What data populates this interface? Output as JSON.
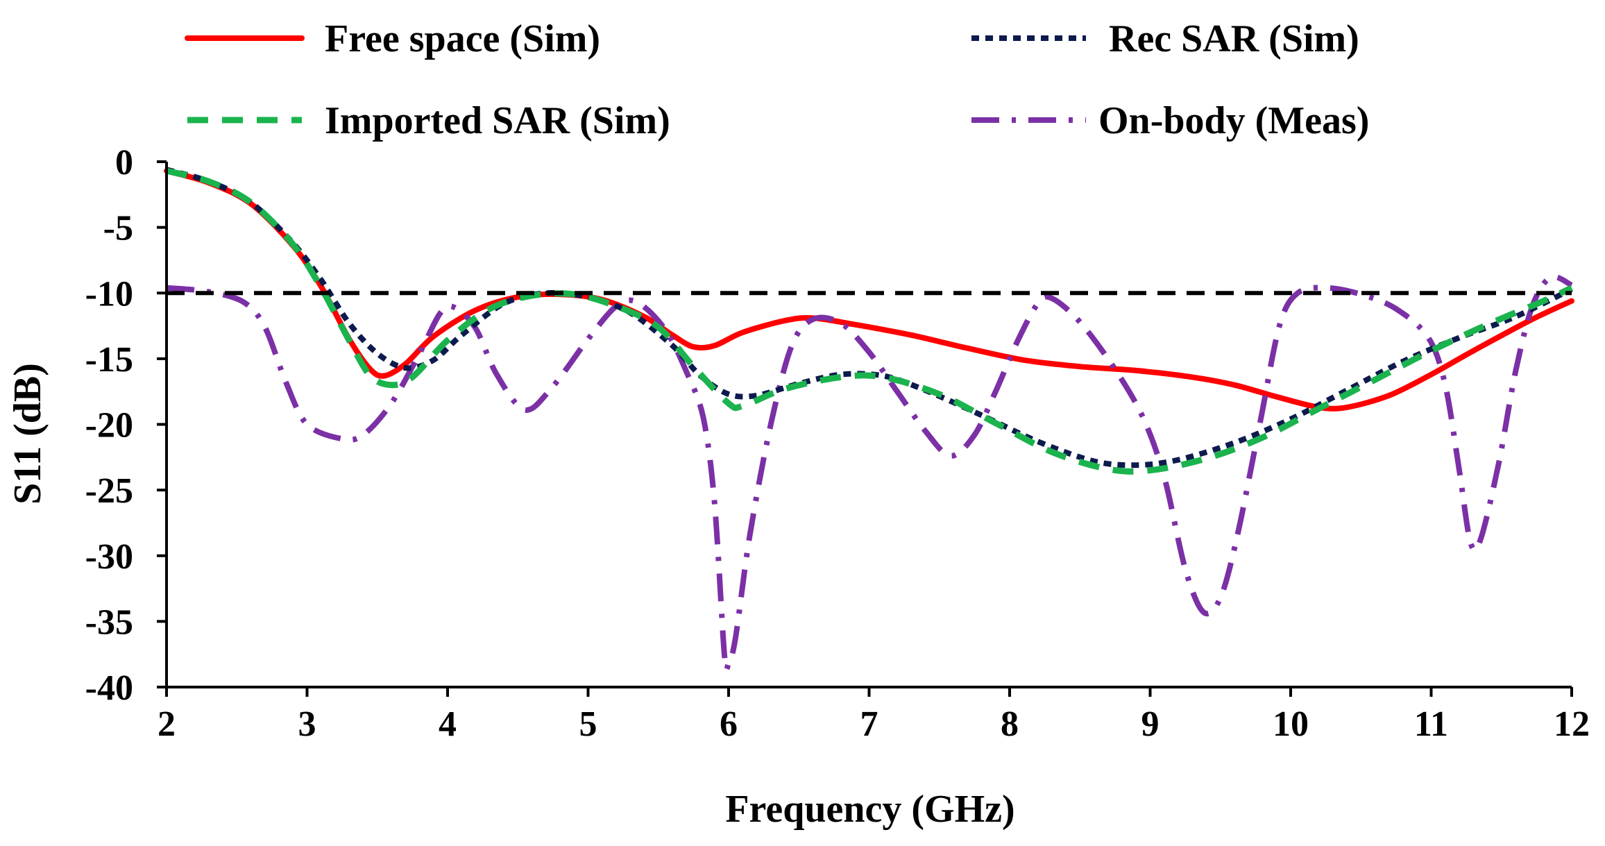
{
  "chart_data": {
    "type": "line",
    "title": "",
    "xlabel": "Frequency (GHz)",
    "ylabel": "S11  (dB)",
    "xlim": [
      2,
      12
    ],
    "ylim": [
      -40,
      0
    ],
    "x_ticks": [
      2,
      3,
      4,
      5,
      6,
      7,
      8,
      9,
      10,
      11,
      12
    ],
    "y_ticks": [
      0,
      -5,
      -10,
      -15,
      -20,
      -25,
      -30,
      -35,
      -40
    ],
    "x_tick_labels": [
      "2",
      "3",
      "4",
      "5",
      "6",
      "7",
      "8",
      "9",
      "10",
      "11",
      "12"
    ],
    "y_tick_labels": [
      "0",
      "-5",
      "-10",
      "-15",
      "-20",
      "-25",
      "-30",
      "-35",
      "-40"
    ],
    "grid": false,
    "legend_position": "top",
    "reference_line": {
      "y": -10,
      "color": "#000000",
      "style": "dashed"
    },
    "series": [
      {
        "name": "Free space (Sim)",
        "color": "#ff0000",
        "style": "solid",
        "points": [
          [
            2,
            -0.7
          ],
          [
            2.3,
            -1.6
          ],
          [
            2.6,
            -3.2
          ],
          [
            2.9,
            -6.4
          ],
          [
            3.1,
            -9.5
          ],
          [
            3.3,
            -13.5
          ],
          [
            3.45,
            -15.8
          ],
          [
            3.55,
            -16.3
          ],
          [
            3.7,
            -15.4
          ],
          [
            3.9,
            -13.3
          ],
          [
            4.2,
            -11.3
          ],
          [
            4.5,
            -10.3
          ],
          [
            4.8,
            -10.1
          ],
          [
            5.1,
            -10.5
          ],
          [
            5.4,
            -11.8
          ],
          [
            5.6,
            -13.2
          ],
          [
            5.75,
            -14.1
          ],
          [
            5.9,
            -14.0
          ],
          [
            6.1,
            -13.0
          ],
          [
            6.4,
            -12.1
          ],
          [
            6.6,
            -11.9
          ],
          [
            6.9,
            -12.4
          ],
          [
            7.3,
            -13.2
          ],
          [
            7.7,
            -14.2
          ],
          [
            8.1,
            -15.1
          ],
          [
            8.5,
            -15.6
          ],
          [
            8.9,
            -15.9
          ],
          [
            9.3,
            -16.4
          ],
          [
            9.6,
            -17.0
          ],
          [
            9.9,
            -17.9
          ],
          [
            10.2,
            -18.7
          ],
          [
            10.4,
            -18.7
          ],
          [
            10.7,
            -17.8
          ],
          [
            11.0,
            -16.2
          ],
          [
            11.3,
            -14.4
          ],
          [
            11.7,
            -12.1
          ],
          [
            12,
            -10.6
          ]
        ]
      },
      {
        "name": "Rec SAR (Sim)",
        "color": "#0d1a4d",
        "style": "dotted",
        "points": [
          [
            2,
            -0.6
          ],
          [
            2.3,
            -1.5
          ],
          [
            2.6,
            -3.1
          ],
          [
            2.9,
            -6.2
          ],
          [
            3.1,
            -9.0
          ],
          [
            3.3,
            -12.3
          ],
          [
            3.5,
            -14.6
          ],
          [
            3.7,
            -15.7
          ],
          [
            3.9,
            -15.1
          ],
          [
            4.1,
            -13.2
          ],
          [
            4.4,
            -10.8
          ],
          [
            4.7,
            -10.0
          ],
          [
            5.0,
            -10.3
          ],
          [
            5.3,
            -11.5
          ],
          [
            5.6,
            -14.0
          ],
          [
            5.8,
            -16.3
          ],
          [
            6.0,
            -17.7
          ],
          [
            6.2,
            -17.8
          ],
          [
            6.5,
            -16.9
          ],
          [
            6.8,
            -16.2
          ],
          [
            7.1,
            -16.3
          ],
          [
            7.4,
            -17.4
          ],
          [
            7.8,
            -19.3
          ],
          [
            8.2,
            -21.3
          ],
          [
            8.6,
            -22.8
          ],
          [
            8.9,
            -23.1
          ],
          [
            9.2,
            -22.7
          ],
          [
            9.6,
            -21.4
          ],
          [
            10.0,
            -19.6
          ],
          [
            10.4,
            -17.4
          ],
          [
            10.8,
            -15.2
          ],
          [
            11.2,
            -13.4
          ],
          [
            11.6,
            -11.8
          ],
          [
            12,
            -9.7
          ]
        ]
      },
      {
        "name": "Imported SAR (Sim)",
        "color": "#1ab34d",
        "style": "dashed",
        "points": [
          [
            2,
            -0.7
          ],
          [
            2.3,
            -1.5
          ],
          [
            2.6,
            -3.1
          ],
          [
            2.9,
            -6.3
          ],
          [
            3.1,
            -9.6
          ],
          [
            3.3,
            -13.6
          ],
          [
            3.45,
            -16.3
          ],
          [
            3.6,
            -17.0
          ],
          [
            3.75,
            -16.4
          ],
          [
            4.0,
            -13.6
          ],
          [
            4.3,
            -11.2
          ],
          [
            4.6,
            -10.2
          ],
          [
            4.9,
            -10.1
          ],
          [
            5.2,
            -11.0
          ],
          [
            5.5,
            -12.6
          ],
          [
            5.75,
            -15.6
          ],
          [
            6.0,
            -18.4
          ],
          [
            6.1,
            -18.6
          ],
          [
            6.4,
            -17.3
          ],
          [
            6.8,
            -16.4
          ],
          [
            7.1,
            -16.4
          ],
          [
            7.5,
            -17.7
          ],
          [
            7.9,
            -19.9
          ],
          [
            8.3,
            -22.1
          ],
          [
            8.7,
            -23.4
          ],
          [
            9.0,
            -23.5
          ],
          [
            9.4,
            -22.6
          ],
          [
            9.8,
            -21.0
          ],
          [
            10.2,
            -18.8
          ],
          [
            10.6,
            -16.6
          ],
          [
            11.0,
            -14.4
          ],
          [
            11.4,
            -12.4
          ],
          [
            11.8,
            -10.6
          ],
          [
            12,
            -9.6
          ]
        ]
      },
      {
        "name": "On-body (Meas)",
        "color": "#7b30a6",
        "style": "dashdot",
        "points": [
          [
            2,
            -9.6
          ],
          [
            2.3,
            -9.9
          ],
          [
            2.55,
            -10.7
          ],
          [
            2.7,
            -12.6
          ],
          [
            2.85,
            -16.8
          ],
          [
            3.0,
            -20.0
          ],
          [
            3.25,
            -21.1
          ],
          [
            3.4,
            -20.8
          ],
          [
            3.6,
            -18.4
          ],
          [
            3.8,
            -14.6
          ],
          [
            3.95,
            -11.5
          ],
          [
            4.05,
            -11.1
          ],
          [
            4.2,
            -12.7
          ],
          [
            4.35,
            -16.2
          ],
          [
            4.55,
            -18.9
          ],
          [
            4.75,
            -17.1
          ],
          [
            5.0,
            -13.5
          ],
          [
            5.2,
            -11.0
          ],
          [
            5.35,
            -10.7
          ],
          [
            5.55,
            -12.8
          ],
          [
            5.7,
            -16.0
          ],
          [
            5.82,
            -19.5
          ],
          [
            5.9,
            -26.0
          ],
          [
            5.97,
            -37.5
          ],
          [
            6.0,
            -38.2
          ],
          [
            6.05,
            -36.2
          ],
          [
            6.15,
            -28.5
          ],
          [
            6.3,
            -20.0
          ],
          [
            6.45,
            -14.0
          ],
          [
            6.6,
            -12.0
          ],
          [
            6.8,
            -12.3
          ],
          [
            7.0,
            -14.5
          ],
          [
            7.2,
            -17.5
          ],
          [
            7.4,
            -20.5
          ],
          [
            7.58,
            -22.4
          ],
          [
            7.75,
            -20.8
          ],
          [
            7.9,
            -17.5
          ],
          [
            8.05,
            -13.8
          ],
          [
            8.2,
            -10.8
          ],
          [
            8.3,
            -10.4
          ],
          [
            8.5,
            -12.2
          ],
          [
            8.75,
            -15.8
          ],
          [
            8.95,
            -19.5
          ],
          [
            9.1,
            -24.0
          ],
          [
            9.25,
            -31.0
          ],
          [
            9.38,
            -34.3
          ],
          [
            9.5,
            -33.2
          ],
          [
            9.62,
            -28.5
          ],
          [
            9.78,
            -20.0
          ],
          [
            9.92,
            -12.5
          ],
          [
            10.05,
            -10.0
          ],
          [
            10.25,
            -9.6
          ],
          [
            10.5,
            -10.1
          ],
          [
            10.75,
            -11.2
          ],
          [
            10.98,
            -13.4
          ],
          [
            11.1,
            -17.0
          ],
          [
            11.2,
            -23.5
          ],
          [
            11.28,
            -29.0
          ],
          [
            11.35,
            -28.8
          ],
          [
            11.48,
            -23.0
          ],
          [
            11.6,
            -16.0
          ],
          [
            11.72,
            -11.0
          ],
          [
            11.85,
            -8.8
          ],
          [
            12,
            -9.4
          ]
        ]
      }
    ]
  }
}
